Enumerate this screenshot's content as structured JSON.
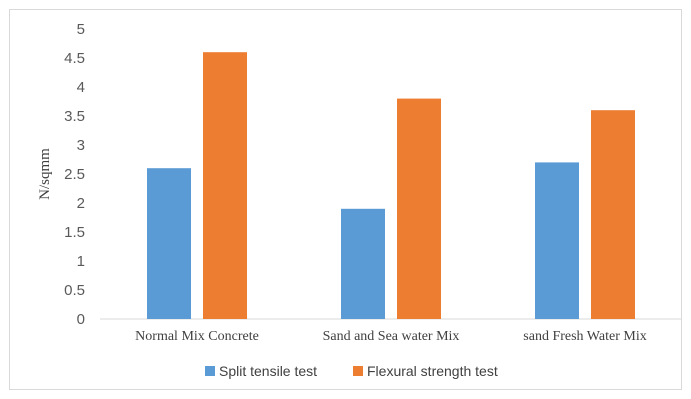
{
  "chart_data": {
    "type": "bar",
    "categories": [
      "Normal Mix Concrete",
      "Sand and Sea water Mix",
      "sand Fresh Water Mix"
    ],
    "series": [
      {
        "name": "Split tensile test",
        "values": [
          2.6,
          1.9,
          2.7
        ],
        "color": "#5b9bd5"
      },
      {
        "name": "Flexural strength test",
        "values": [
          4.6,
          3.8,
          3.6
        ],
        "color": "#ed7d31"
      }
    ],
    "title": "",
    "xlabel": "",
    "ylabel": "N/sqmm",
    "ylim": [
      0,
      5
    ],
    "yticks": [
      "0",
      "0.5",
      "1",
      "1.5",
      "2",
      "2.5",
      "3",
      "3.5",
      "4",
      "4.5",
      "5"
    ],
    "grid": false,
    "legend_position": "bottom"
  }
}
